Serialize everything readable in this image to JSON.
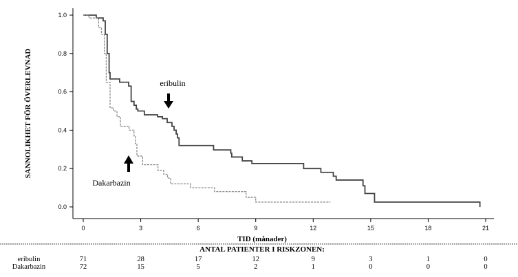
{
  "chart_data": {
    "type": "line",
    "subtype": "kaplan-meier step",
    "xlabel": "TID (månader)",
    "ylabel": "SANNOLIKHET FÖR ÖVERLEVNAD",
    "xlim": [
      0,
      21
    ],
    "ylim": [
      0,
      1.0
    ],
    "xticks": [
      "0",
      "3",
      "6",
      "9",
      "12",
      "15",
      "18",
      "21"
    ],
    "yticks": [
      "0.0",
      "0.2",
      "0.4",
      "0.6",
      "0.8",
      "1.0"
    ],
    "grid": false,
    "series": [
      {
        "name": "eribulin",
        "style": "solid",
        "color": "#444444",
        "points": [
          [
            0,
            1.0
          ],
          [
            0.68,
            0.985
          ],
          [
            1.04,
            0.97
          ],
          [
            1.15,
            0.9
          ],
          [
            1.25,
            0.8
          ],
          [
            1.35,
            0.7
          ],
          [
            1.4,
            0.667
          ],
          [
            1.9,
            0.65
          ],
          [
            2.37,
            0.63
          ],
          [
            2.5,
            0.55
          ],
          [
            2.65,
            0.53
          ],
          [
            2.77,
            0.51
          ],
          [
            2.85,
            0.5
          ],
          [
            3.19,
            0.48
          ],
          [
            3.88,
            0.47
          ],
          [
            4.13,
            0.46
          ],
          [
            4.38,
            0.44
          ],
          [
            4.63,
            0.42
          ],
          [
            4.74,
            0.4
          ],
          [
            4.85,
            0.38
          ],
          [
            4.92,
            0.36
          ],
          [
            5.0,
            0.32
          ],
          [
            6.8,
            0.297
          ],
          [
            7.7,
            0.28
          ],
          [
            7.75,
            0.26
          ],
          [
            8.3,
            0.24
          ],
          [
            8.8,
            0.226
          ],
          [
            11.5,
            0.2
          ],
          [
            12.4,
            0.18
          ],
          [
            13.05,
            0.16
          ],
          [
            13.2,
            0.14
          ],
          [
            14.6,
            0.11
          ],
          [
            14.7,
            0.07
          ],
          [
            15.2,
            0.025
          ],
          [
            20.7,
            0.0
          ]
        ]
      },
      {
        "name": "Dakarbazin",
        "style": "dashed",
        "color": "#888888",
        "points": [
          [
            0,
            1.0
          ],
          [
            0.3,
            0.985
          ],
          [
            0.8,
            0.935
          ],
          [
            0.95,
            0.9
          ],
          [
            1.1,
            0.8
          ],
          [
            1.2,
            0.65
          ],
          [
            1.4,
            0.516
          ],
          [
            1.58,
            0.5
          ],
          [
            1.76,
            0.47
          ],
          [
            1.94,
            0.42
          ],
          [
            2.4,
            0.4
          ],
          [
            2.65,
            0.37
          ],
          [
            2.72,
            0.33
          ],
          [
            2.8,
            0.265
          ],
          [
            3.1,
            0.22
          ],
          [
            3.9,
            0.19
          ],
          [
            4.2,
            0.17
          ],
          [
            4.4,
            0.15
          ],
          [
            4.56,
            0.12
          ],
          [
            5.6,
            0.1
          ],
          [
            6.85,
            0.08
          ],
          [
            8.5,
            0.05
          ],
          [
            9.0,
            0.025
          ],
          [
            12.9,
            0.025
          ]
        ]
      }
    ],
    "annotations": [
      {
        "text": "eribulin",
        "arrow": "down"
      },
      {
        "text": "Dakarbazin",
        "arrow": "up"
      }
    ]
  },
  "risk_table": {
    "title": "ANTAL PATIENTER I RISKZONEN:",
    "rows": [
      {
        "label": "eribulin",
        "values": [
          "71",
          "28",
          "17",
          "12",
          "9",
          "3",
          "1",
          "0"
        ]
      },
      {
        "label": "Dakarbazin",
        "values": [
          "72",
          "15",
          "5",
          "2",
          "1",
          "0",
          "0",
          "0"
        ]
      }
    ]
  }
}
